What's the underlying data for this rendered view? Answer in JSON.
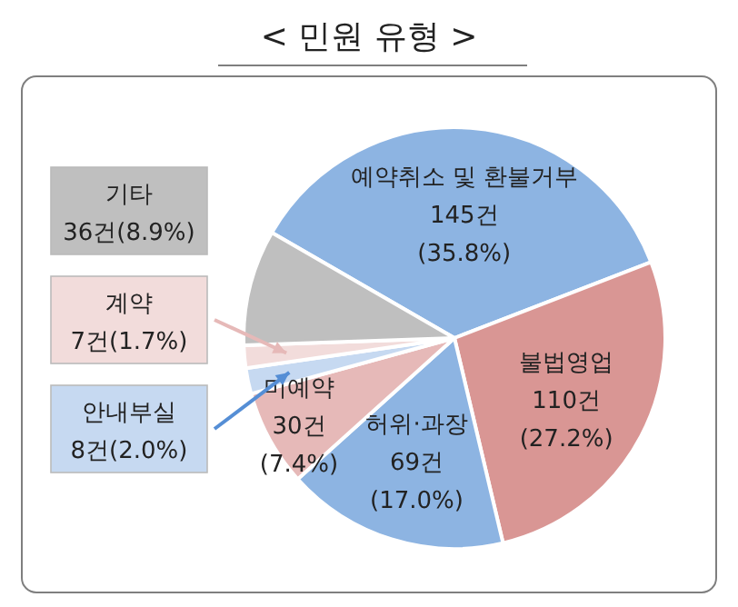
{
  "chart_data": {
    "type": "pie",
    "title": "< 민원 유형 >",
    "categories": [
      "예약취소 및 환불거부",
      "불법영업",
      "허위·과장",
      "미예약",
      "안내부실",
      "계약",
      "기타"
    ],
    "values": [
      145,
      110,
      69,
      30,
      8,
      7,
      36
    ],
    "colors": [
      "#8db4e2",
      "#d99694",
      "#8db4e2",
      "#e6b9b8",
      "#c6d9f1",
      "#f2dcdb",
      "#bfbfbf"
    ],
    "value_labels": [
      "145건 (35.8%)",
      "110건 (27.2%)",
      "69건 (17.0%)",
      "30건 (7.4%)",
      "8건(2.0%)",
      "7건(1.7%)",
      "36건(8.9%)"
    ]
  }
}
